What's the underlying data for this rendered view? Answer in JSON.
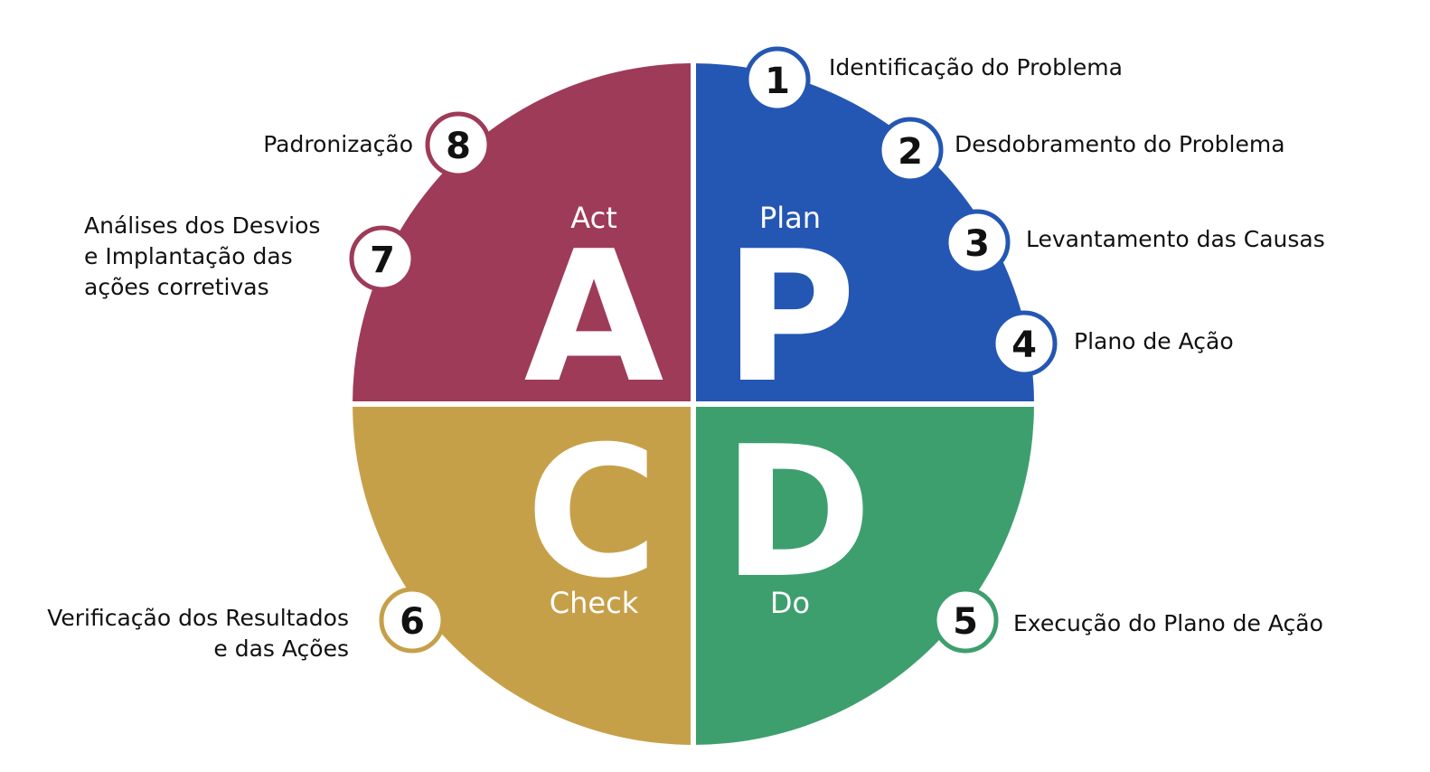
{
  "colors": {
    "plan": "#2457b3",
    "do": "#3e9f6e",
    "check": "#c6a049",
    "act": "#9e3b58"
  },
  "quadrants": {
    "act": {
      "letter": "A",
      "word": "Act"
    },
    "plan": {
      "letter": "P",
      "word": "Plan"
    },
    "check": {
      "letter": "C",
      "word": "Check"
    },
    "do": {
      "letter": "D",
      "word": "Do"
    }
  },
  "steps": [
    {
      "number": "1",
      "label_lines": [
        "Identificação do Problema"
      ],
      "phase": "plan"
    },
    {
      "number": "2",
      "label_lines": [
        "Desdobramento do Problema"
      ],
      "phase": "plan"
    },
    {
      "number": "3",
      "label_lines": [
        "Levantamento das Causas"
      ],
      "phase": "plan"
    },
    {
      "number": "4",
      "label_lines": [
        "Plano de Ação"
      ],
      "phase": "plan"
    },
    {
      "number": "5",
      "label_lines": [
        "Execução do Plano de Ação"
      ],
      "phase": "do"
    },
    {
      "number": "6",
      "label_lines": [
        "Verificação dos Resultados",
        "e das Ações"
      ],
      "phase": "check"
    },
    {
      "number": "7",
      "label_lines": [
        "Análises dos Desvios",
        "e Implantação das",
        "ações corretivas"
      ],
      "phase": "act"
    },
    {
      "number": "8",
      "label_lines": [
        "Padronização"
      ],
      "phase": "act"
    }
  ]
}
